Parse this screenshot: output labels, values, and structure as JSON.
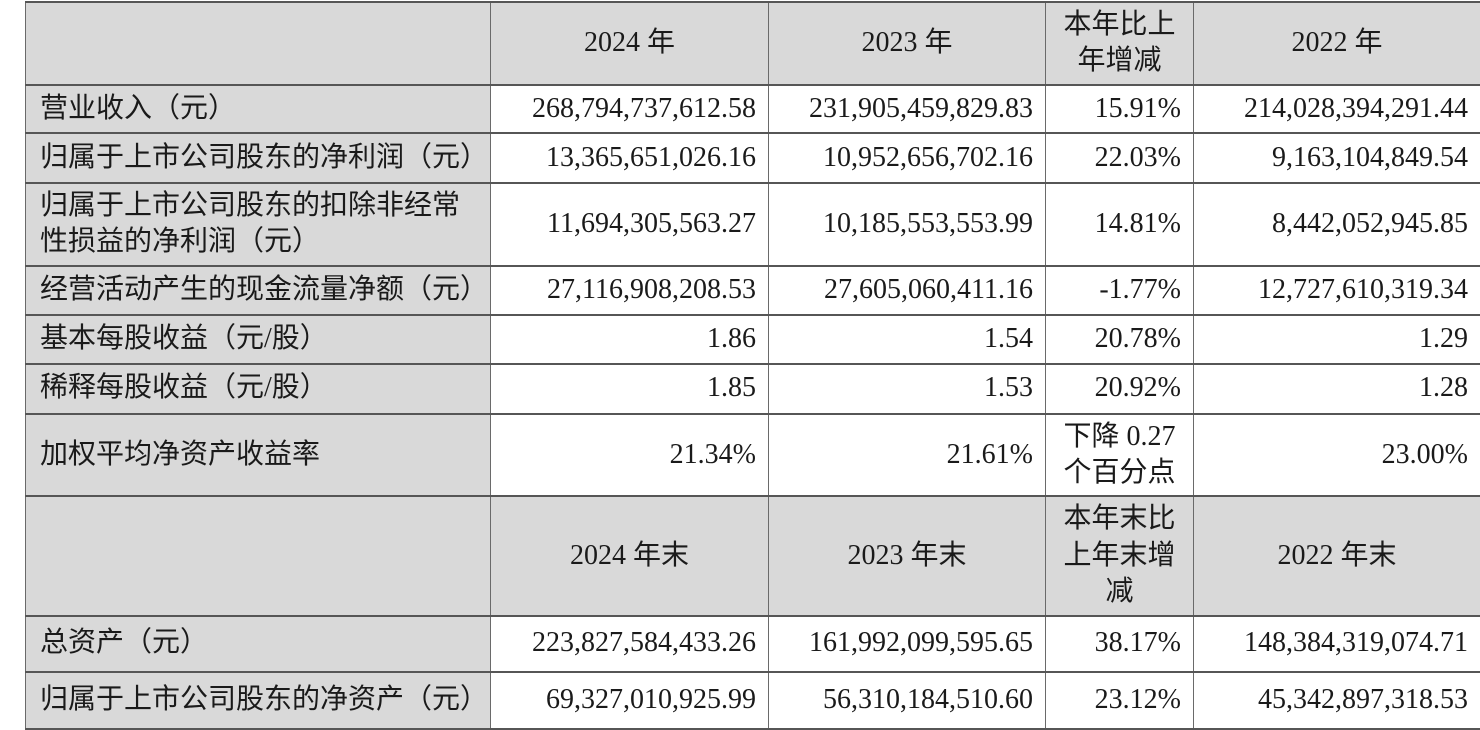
{
  "colors": {
    "header_bg": "#d9d9d9",
    "label_bg": "#d9d9d9",
    "cell_bg": "#ffffff",
    "grid_line": "#565656",
    "text": "#1a1a1a"
  },
  "table": {
    "type": "table",
    "sections": [
      {
        "header": [
          "",
          "2024 年",
          "2023 年",
          "本年比上\n年增减",
          "2022 年"
        ],
        "rows": [
          {
            "label": "营业收入（元）",
            "v2024": "268,794,737,612.58",
            "v2023": "231,905,459,829.83",
            "change": "15.91%",
            "v2022": "214,028,394,291.44"
          },
          {
            "label": "归属于上市公司股东的净利润（元）",
            "v2024": "13,365,651,026.16",
            "v2023": "10,952,656,702.16",
            "change": "22.03%",
            "v2022": "9,163,104,849.54"
          },
          {
            "label": "归属于上市公司股东的扣除非经常性损益的净利润（元）",
            "v2024": "11,694,305,563.27",
            "v2023": "10,185,553,553.99",
            "change": "14.81%",
            "v2022": "8,442,052,945.85"
          },
          {
            "label": "经营活动产生的现金流量净额（元）",
            "v2024": "27,116,908,208.53",
            "v2023": "27,605,060,411.16",
            "change": "-1.77%",
            "v2022": "12,727,610,319.34"
          },
          {
            "label": "基本每股收益（元/股）",
            "v2024": "1.86",
            "v2023": "1.54",
            "change": "20.78%",
            "v2022": "1.29"
          },
          {
            "label": "稀释每股收益（元/股）",
            "v2024": "1.85",
            "v2023": "1.53",
            "change": "20.92%",
            "v2022": "1.28"
          },
          {
            "label": "加权平均净资产收益率",
            "v2024": "21.34%",
            "v2023": "21.61%",
            "change": "下降 0.27\n个百分点",
            "v2022": "23.00%"
          }
        ]
      },
      {
        "header": [
          "",
          "2024 年末",
          "2023 年末",
          "本年末比\n上年末增\n减",
          "2022 年末"
        ],
        "rows": [
          {
            "label": "总资产（元）",
            "v2024": "223,827,584,433.26",
            "v2023": "161,992,099,595.65",
            "change": "38.17%",
            "v2022": "148,384,319,074.71"
          },
          {
            "label": "归属于上市公司股东的净资产（元）",
            "v2024": "69,327,010,925.99",
            "v2023": "56,310,184,510.60",
            "change": "23.12%",
            "v2022": "45,342,897,318.53"
          }
        ]
      }
    ]
  }
}
